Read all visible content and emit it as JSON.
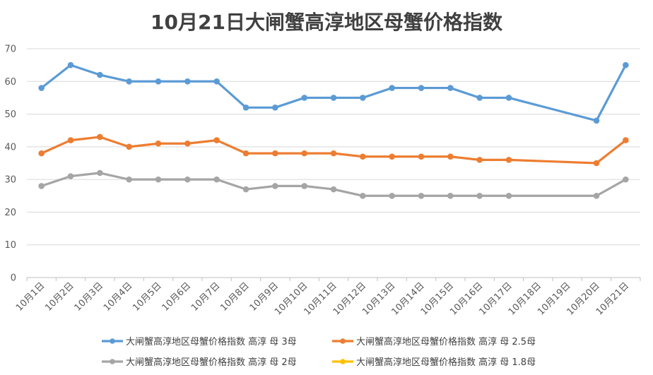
{
  "chart_data": {
    "type": "line",
    "title": "10月21日大闸蟹高淳地区母蟹价格指数",
    "categories": [
      "10月1日",
      "10月2日",
      "10月3日",
      "10月4日",
      "10月5日",
      "10月6日",
      "10月7日",
      "10月8日",
      "10月9日",
      "10月10日",
      "10月11日",
      "10月12日",
      "10月13日",
      "10月14日",
      "10月15日",
      "10月16日",
      "10月17日",
      "10月18日",
      "10月19日",
      "10月20日",
      "10月21日"
    ],
    "ylim": [
      0,
      70
    ],
    "yticks": [
      0,
      10,
      20,
      30,
      40,
      50,
      60,
      70
    ],
    "grid": true,
    "legend_position": "bottom",
    "series": [
      {
        "name": "大闸蟹高淳地区母蟹价格指数 高淳 母 3母",
        "color": "#5B9BD5",
        "values": [
          58,
          65,
          62,
          60,
          60,
          60,
          60,
          52,
          52,
          55,
          55,
          55,
          58,
          58,
          58,
          55,
          55,
          null,
          null,
          48,
          65
        ]
      },
      {
        "name": "大闸蟹高淳地区母蟹价格指数 高淳 母 2.5母",
        "color": "#ED7D31",
        "values": [
          38,
          42,
          43,
          40,
          41,
          41,
          42,
          38,
          38,
          38,
          38,
          37,
          37,
          37,
          37,
          36,
          36,
          null,
          null,
          35,
          42
        ]
      },
      {
        "name": "大闸蟹高淳地区母蟹价格指数 高淳 母 2母",
        "color": "#A5A5A5",
        "values": [
          28,
          31,
          32,
          30,
          30,
          30,
          30,
          27,
          28,
          28,
          27,
          25,
          25,
          25,
          25,
          25,
          25,
          null,
          null,
          25,
          30
        ]
      },
      {
        "name": "大闸蟹高淳地区母蟹价格指数 高淳 母 1.8母",
        "color": "#FFC000",
        "values": [
          null,
          null,
          null,
          null,
          null,
          null,
          null,
          null,
          null,
          null,
          null,
          null,
          null,
          null,
          null,
          null,
          null,
          null,
          null,
          null,
          null
        ]
      }
    ]
  }
}
